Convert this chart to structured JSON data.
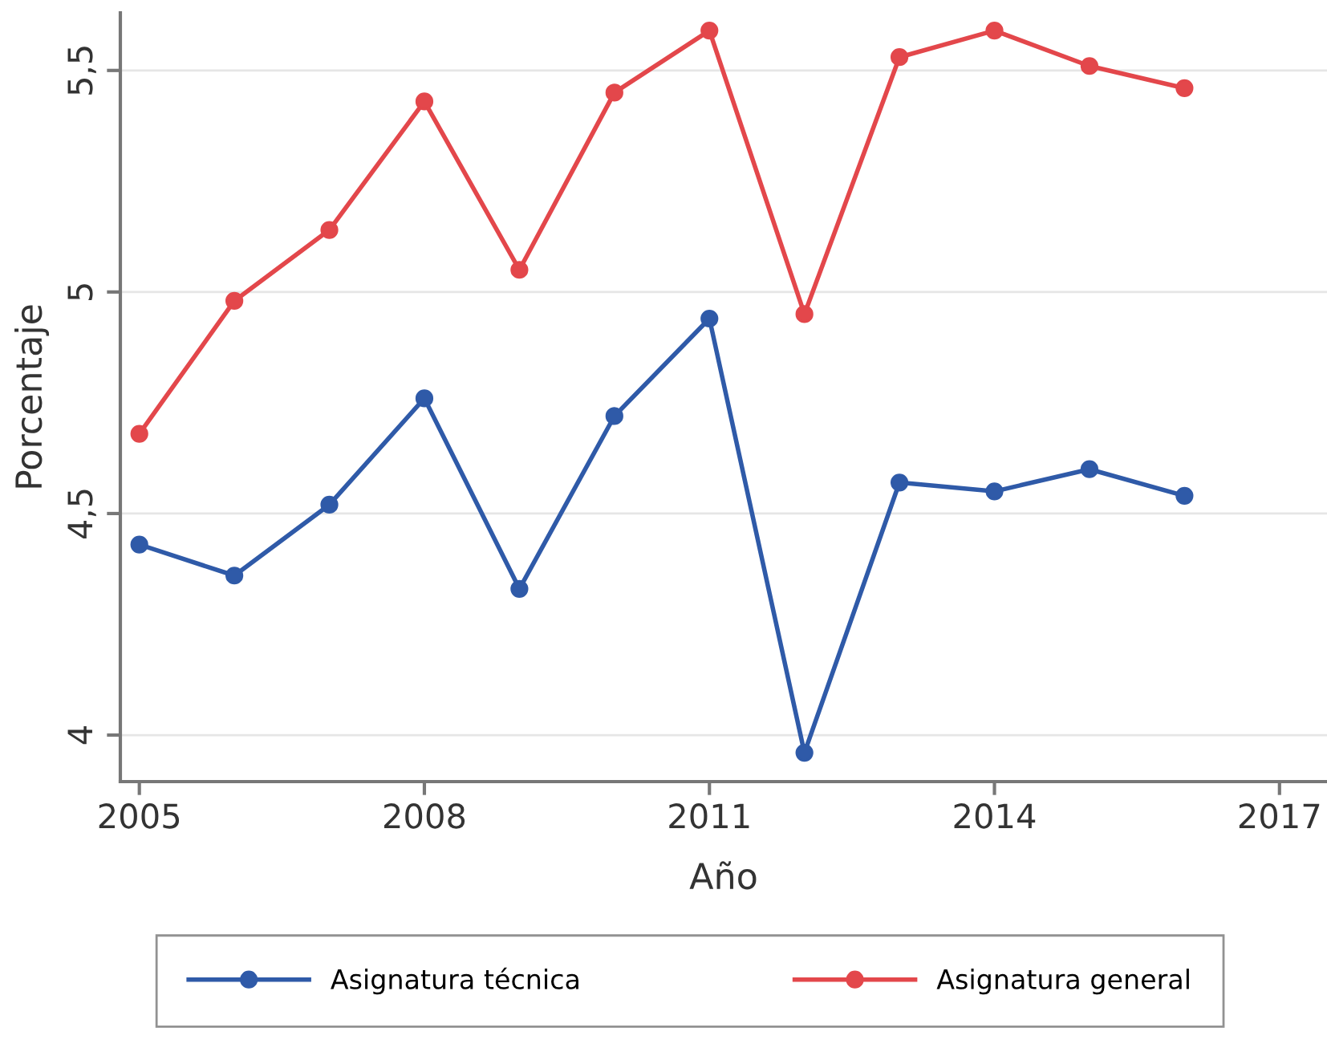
{
  "chart_data": {
    "type": "line",
    "xlabel": "Año",
    "ylabel": "Porcentaje",
    "x": [
      2005,
      2006,
      2007,
      2008,
      2009,
      2010,
      2011,
      2012,
      2013,
      2014,
      2015,
      2016
    ],
    "series": [
      {
        "name": "Asignatura técnica",
        "color": "#2f5aa8",
        "values": [
          4.43,
          4.36,
          4.52,
          4.76,
          4.33,
          4.72,
          4.94,
          3.96,
          4.57,
          4.55,
          4.6,
          4.54
        ]
      },
      {
        "name": "Asignatura general",
        "color": "#e3474b",
        "values": [
          4.68,
          4.98,
          5.14,
          5.43,
          5.05,
          5.45,
          5.59,
          4.95,
          5.53,
          5.59,
          5.51,
          5.46
        ]
      }
    ],
    "xlim": [
      2004.8,
      2017.5
    ],
    "xticks": [
      2005,
      2008,
      2011,
      2014,
      2017
    ],
    "ylim": [
      3.895,
      5.63
    ],
    "yticks": [
      {
        "value": 4,
        "label": "4"
      },
      {
        "value": 4.5,
        "label": "4,5"
      },
      {
        "value": 5,
        "label": "5"
      },
      {
        "value": 5.5,
        "label": "5,5"
      }
    ],
    "grid": "y",
    "legend": "bottom",
    "marker": "circle",
    "line_style": "solid"
  }
}
